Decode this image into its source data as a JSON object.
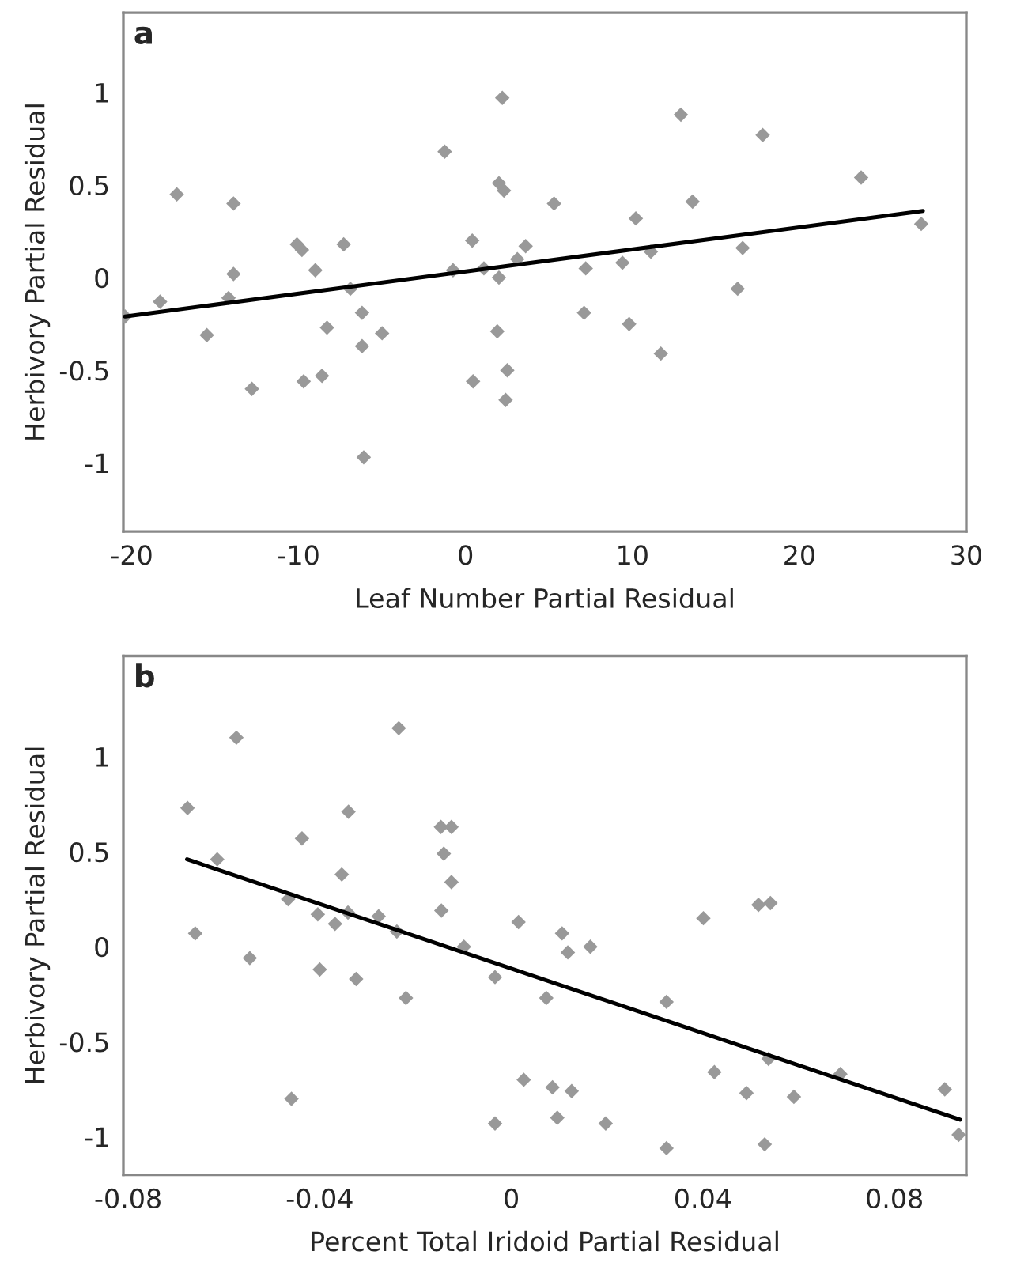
{
  "chart_data": [
    {
      "type": "scatter",
      "title": "a",
      "xlabel": "Leaf Number Partial Residual",
      "ylabel": "Herbivory Partial Residual",
      "xlim": [
        -20.5,
        30
      ],
      "ylim": [
        -1.37,
        1.43
      ],
      "xticks": [
        -20,
        -10,
        0,
        10,
        20,
        30
      ],
      "yticks": [
        -1,
        -0.5,
        0,
        0.5,
        1
      ],
      "grid": false,
      "series": [
        {
          "marker": "diamond",
          "color": "#999999",
          "x": [
            -20.4,
            -18.3,
            -17.3,
            -15.5,
            -14.2,
            -13.9,
            -13.9,
            -12.8,
            -10.1,
            -9.8,
            -9.0,
            -9.7,
            -8.6,
            -8.3,
            -7.3,
            -6.9,
            -6.2,
            -6.2,
            -6.1,
            -5.0,
            -1.25,
            -0.75,
            0.4,
            0.45,
            1.1,
            2.0,
            1.9,
            2.2,
            2.0,
            2.3,
            2.5,
            2.4,
            3.1,
            3.6,
            5.3,
            7.2,
            7.1,
            9.4,
            10.2,
            9.8,
            11.1,
            11.7,
            12.9,
            13.6,
            16.3,
            16.6,
            17.8,
            23.7,
            27.3
          ],
          "values": [
            -0.21,
            -0.13,
            0.45,
            -0.31,
            -0.11,
            0.4,
            0.02,
            -0.6,
            0.18,
            0.15,
            0.04,
            -0.56,
            -0.53,
            -0.27,
            0.18,
            -0.06,
            -0.19,
            -0.37,
            -0.97,
            -0.3,
            0.68,
            0.04,
            0.2,
            -0.56,
            0.05,
            0.0,
            -0.29,
            0.97,
            0.51,
            0.47,
            -0.5,
            -0.66,
            0.1,
            0.17,
            0.4,
            0.05,
            -0.19,
            0.08,
            0.32,
            -0.25,
            0.14,
            -0.41,
            0.88,
            0.41,
            -0.06,
            0.16,
            0.77,
            0.54,
            0.29
          ]
        },
        {
          "type": "line",
          "marker": "none",
          "color": "#000000",
          "x": [
            -20.4,
            27.4
          ],
          "values": [
            -0.21,
            0.36
          ]
        }
      ]
    },
    {
      "type": "scatter",
      "title": "b",
      "xlabel": "Percent Total Iridoid Partial Residual",
      "ylabel": "Herbivory Partial Residual",
      "xlim": [
        -0.081,
        0.095
      ],
      "ylim": [
        -1.2,
        1.53
      ],
      "xticks": [
        -0.08,
        -0.04,
        0,
        0.04,
        0.08
      ],
      "yticks": [
        -1,
        -0.5,
        0,
        0.5,
        1
      ],
      "grid": false,
      "series": [
        {
          "marker": "diamond",
          "color": "#999999",
          "x": [
            -0.0676,
            -0.066,
            -0.0614,
            -0.0574,
            -0.0546,
            -0.0466,
            -0.0459,
            -0.0437,
            -0.0404,
            -0.04,
            -0.0368,
            -0.0354,
            -0.034,
            -0.0341,
            -0.0324,
            -0.0277,
            -0.0235,
            -0.0239,
            -0.022,
            -0.0147,
            -0.0125,
            -0.0141,
            -0.0125,
            -0.0146,
            -0.0099,
            -0.0034,
            -0.0034,
            0.0015,
            0.0026,
            0.0073,
            0.0106,
            0.0118,
            0.0086,
            0.0126,
            0.0096,
            0.0165,
            0.0197,
            0.0324,
            0.0324,
            0.0401,
            0.0424,
            0.0491,
            0.0516,
            0.0541,
            0.0537,
            0.0529,
            0.059,
            0.0687,
            0.0905,
            0.0934
          ],
          "values": [
            0.73,
            0.07,
            0.46,
            1.1,
            -0.06,
            0.25,
            -0.8,
            0.57,
            0.17,
            -0.12,
            0.12,
            0.38,
            0.71,
            0.18,
            -0.17,
            0.16,
            1.15,
            0.08,
            -0.27,
            0.63,
            0.63,
            0.49,
            0.34,
            0.19,
            0.0,
            -0.16,
            -0.93,
            0.13,
            -0.7,
            -0.27,
            0.07,
            -0.03,
            -0.74,
            -0.76,
            -0.9,
            0.0,
            -0.93,
            -0.29,
            -1.06,
            0.15,
            -0.66,
            -0.77,
            0.22,
            0.23,
            -0.59,
            -1.04,
            -0.79,
            -0.67,
            -0.75,
            -0.99
          ]
        },
        {
          "type": "line",
          "marker": "none",
          "color": "#000000",
          "x": [
            -0.0677,
            0.0937
          ],
          "values": [
            0.46,
            -0.91
          ]
        }
      ]
    }
  ]
}
